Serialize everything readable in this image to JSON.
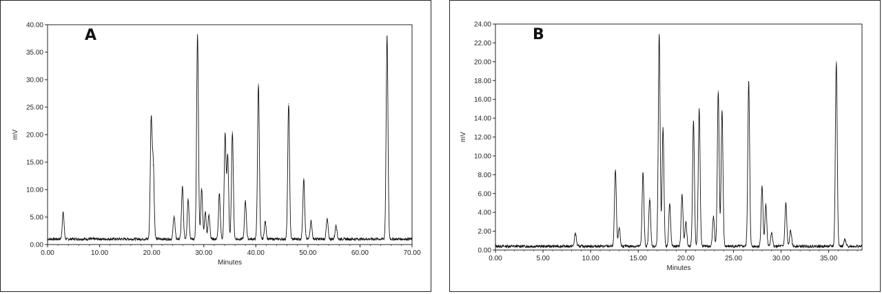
{
  "chart_data": [
    {
      "type": "line",
      "panel_label": "A",
      "xlabel": "Minutes",
      "ylabel": "mV",
      "xlim": [
        0,
        70
      ],
      "ylim": [
        0,
        40
      ],
      "xticks": [
        "0.00",
        "10.00",
        "20.00",
        "30.00",
        "40.00",
        "50.00",
        "60.00",
        "70.00"
      ],
      "yticks": [
        "0.00",
        "5.00",
        "10.00",
        "15.00",
        "20.00",
        "25.00",
        "30.00",
        "35.00",
        "40.00"
      ],
      "baseline": 1.0,
      "peaks": [
        {
          "x": 3.0,
          "y": 5.8
        },
        {
          "x": 19.9,
          "y": 22.5
        },
        {
          "x": 20.3,
          "y": 14.5
        },
        {
          "x": 24.3,
          "y": 5.2
        },
        {
          "x": 25.9,
          "y": 10.5
        },
        {
          "x": 27.0,
          "y": 8.3
        },
        {
          "x": 28.8,
          "y": 38.2
        },
        {
          "x": 29.6,
          "y": 10.2
        },
        {
          "x": 30.3,
          "y": 6.0
        },
        {
          "x": 31.0,
          "y": 5.5
        },
        {
          "x": 33.0,
          "y": 9.2
        },
        {
          "x": 34.1,
          "y": 20.0
        },
        {
          "x": 34.6,
          "y": 16.0
        },
        {
          "x": 35.5,
          "y": 20.5
        },
        {
          "x": 38.0,
          "y": 8.0
        },
        {
          "x": 40.5,
          "y": 29.2
        },
        {
          "x": 41.8,
          "y": 4.2
        },
        {
          "x": 46.3,
          "y": 25.6
        },
        {
          "x": 49.2,
          "y": 12.0
        },
        {
          "x": 50.6,
          "y": 4.3
        },
        {
          "x": 53.7,
          "y": 4.6
        },
        {
          "x": 55.4,
          "y": 3.6
        },
        {
          "x": 65.2,
          "y": 37.8
        }
      ]
    },
    {
      "type": "line",
      "panel_label": "B",
      "xlabel": "Minutes",
      "ylabel": "mV",
      "xlim": [
        0,
        38.5
      ],
      "ylim": [
        0,
        24
      ],
      "xticks": [
        "0.00",
        "5.00",
        "10.00",
        "15.00",
        "20.00",
        "25.00",
        "30.00",
        "35.00"
      ],
      "yticks": [
        "0.00",
        "2.00",
        "4.00",
        "6.00",
        "8.00",
        "10.00",
        "12.00",
        "14.00",
        "16.00",
        "18.00",
        "20.00",
        "22.00",
        "24.00"
      ],
      "baseline": 0.4,
      "peaks": [
        {
          "x": 8.4,
          "y": 1.8
        },
        {
          "x": 12.6,
          "y": 8.5
        },
        {
          "x": 13.0,
          "y": 2.4
        },
        {
          "x": 15.5,
          "y": 8.2
        },
        {
          "x": 16.2,
          "y": 5.5
        },
        {
          "x": 17.2,
          "y": 22.9
        },
        {
          "x": 17.6,
          "y": 13.0
        },
        {
          "x": 18.3,
          "y": 4.9
        },
        {
          "x": 19.6,
          "y": 5.9
        },
        {
          "x": 20.0,
          "y": 3.0
        },
        {
          "x": 20.8,
          "y": 13.7
        },
        {
          "x": 21.4,
          "y": 15.0
        },
        {
          "x": 22.9,
          "y": 3.6
        },
        {
          "x": 23.4,
          "y": 16.9
        },
        {
          "x": 23.8,
          "y": 14.8
        },
        {
          "x": 26.6,
          "y": 17.9
        },
        {
          "x": 28.0,
          "y": 6.8
        },
        {
          "x": 28.4,
          "y": 4.9
        },
        {
          "x": 29.0,
          "y": 1.8
        },
        {
          "x": 30.5,
          "y": 5.0
        },
        {
          "x": 31.0,
          "y": 2.1
        },
        {
          "x": 35.8,
          "y": 20.0
        },
        {
          "x": 36.7,
          "y": 1.1
        }
      ]
    }
  ]
}
